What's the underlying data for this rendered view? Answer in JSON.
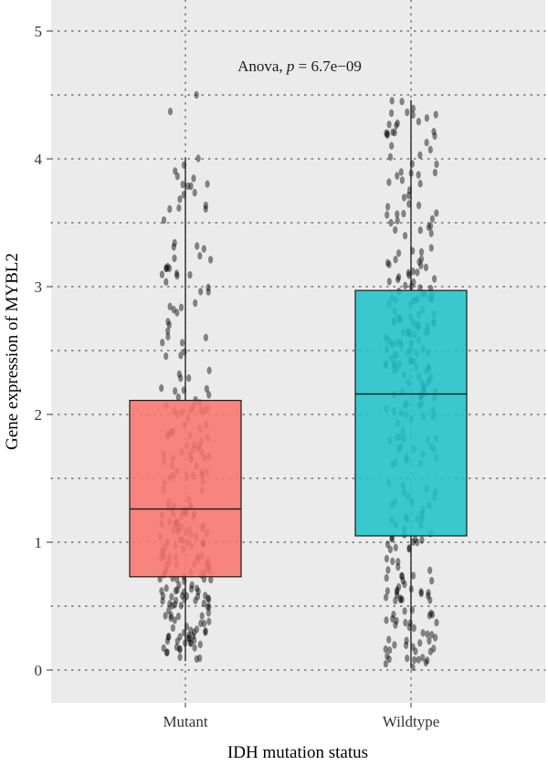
{
  "chart_data": {
    "type": "box",
    "xlabel": "IDH mutation status",
    "ylabel": "Gene expression of MYBL2",
    "ylim": [
      -0.25,
      5.25
    ],
    "yticks": [
      0,
      1,
      2,
      3,
      4,
      5
    ],
    "grid": true,
    "grid_style": "dotted",
    "annotation": {
      "prefix": "Anova, ",
      "p_symbol": "p",
      "suffix": " = 6.7e−09"
    },
    "categories": [
      "Mutant",
      "Wildtype"
    ],
    "boxes": [
      {
        "name": "Mutant",
        "color": "#F8766D",
        "min": 0.07,
        "q1": 0.73,
        "median": 1.26,
        "q3": 2.11,
        "max": 4.01,
        "outliers": [
          4.37,
          4.5
        ]
      },
      {
        "name": "Wildtype",
        "color": "#1FC3C9",
        "min": 0.02,
        "q1": 1.05,
        "median": 2.16,
        "q3": 2.97,
        "max": 4.46,
        "outliers": []
      }
    ],
    "jitter_points": {
      "Mutant": {
        "n": 260,
        "color": "#000000",
        "opacity": 0.45
      },
      "Wildtype": {
        "n": 300,
        "color": "#000000",
        "opacity": 0.45
      }
    }
  }
}
